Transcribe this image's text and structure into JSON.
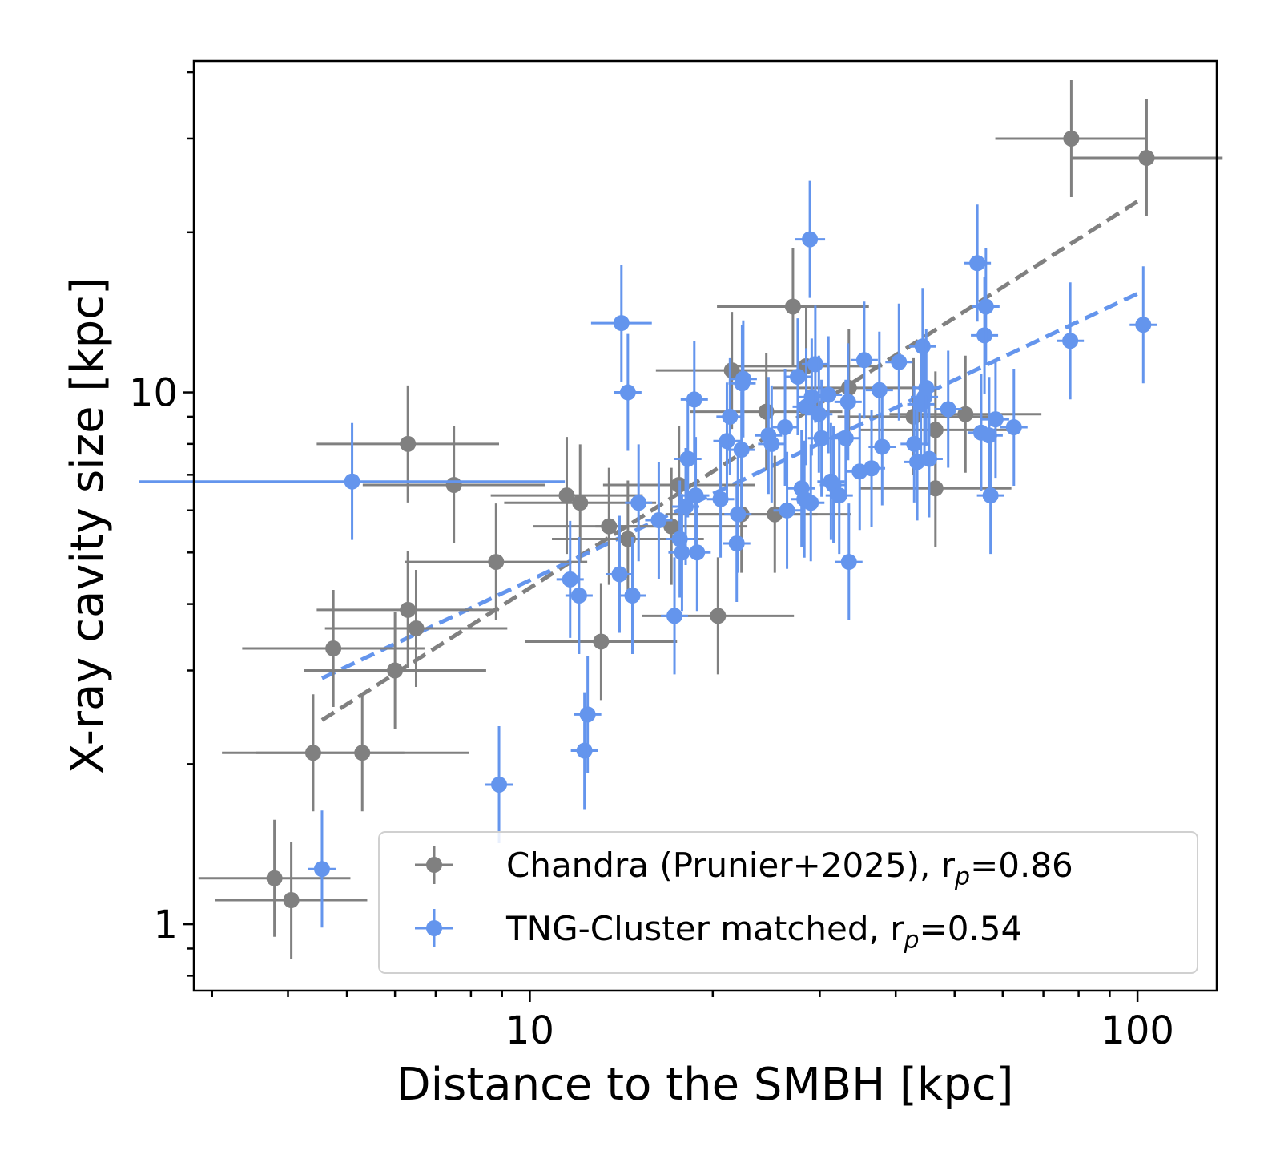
{
  "chart_data": {
    "type": "scatter",
    "xscale": "log",
    "yscale": "log",
    "xlim": [
      2.8,
      135
    ],
    "ylim": [
      0.75,
      42
    ],
    "xlabel": "Distance to the SMBH [kpc]",
    "ylabel": "X-ray cavity size [kpc]",
    "xticks": [
      {
        "value": 10,
        "label": "10"
      },
      {
        "value": 100,
        "label": "100"
      }
    ],
    "yticks": [
      {
        "value": 1,
        "label": "1"
      },
      {
        "value": 10,
        "label": "10"
      }
    ],
    "legend": {
      "position": "lower-right",
      "entries": [
        {
          "series": "chandra",
          "text": "Chandra (Prunier+2025), r",
          "sub": "p",
          "suffix": "=0.86"
        },
        {
          "series": "tng",
          "text": "TNG-Cluster matched, r",
          "sub": "p",
          "suffix": "=0.54"
        }
      ]
    },
    "series": [
      {
        "name": "chandra",
        "color": "#808080",
        "points": [
          [
            3.8,
            1.22,
            0.25,
            0.22
          ],
          [
            4.05,
            1.11,
            0.25,
            0.22
          ],
          [
            4.4,
            2.1,
            0.3,
            0.22
          ],
          [
            4.75,
            3.3,
            0.3,
            0.22
          ],
          [
            5.3,
            2.1,
            0.35,
            0.22
          ],
          [
            6.0,
            3.0,
            0.3,
            0.22
          ],
          [
            6.3,
            8.0,
            0.3,
            0.22
          ],
          [
            6.3,
            3.9,
            0.3,
            0.22
          ],
          [
            6.5,
            3.6,
            0.3,
            0.22
          ],
          [
            7.5,
            6.7,
            0.3,
            0.22
          ],
          [
            8.8,
            4.8,
            0.3,
            0.22
          ],
          [
            11.5,
            6.4,
            0.25,
            0.22
          ],
          [
            12.1,
            6.2,
            0.25,
            0.22
          ],
          [
            13.1,
            3.4,
            0.25,
            0.22
          ],
          [
            13.5,
            5.6,
            0.25,
            0.22
          ],
          [
            14.5,
            5.3,
            0.25,
            0.22
          ],
          [
            17.1,
            5.6,
            0.25,
            0.22
          ],
          [
            17.6,
            6.7,
            0.25,
            0.22
          ],
          [
            20.4,
            3.8,
            0.25,
            0.22
          ],
          [
            21.5,
            11.0,
            0.25,
            0.22
          ],
          [
            22.3,
            5.9,
            0.25,
            0.22
          ],
          [
            24.5,
            9.2,
            0.25,
            0.22
          ],
          [
            25.3,
            5.9,
            0.25,
            0.22
          ],
          [
            27.1,
            14.5,
            0.25,
            0.22
          ],
          [
            28.5,
            11.2,
            0.25,
            0.22
          ],
          [
            33.5,
            10.2,
            0.25,
            0.22
          ],
          [
            42.8,
            9.0,
            0.25,
            0.22
          ],
          [
            46.5,
            8.5,
            0.25,
            0.22
          ],
          [
            46.5,
            6.6,
            0.25,
            0.22
          ],
          [
            52.1,
            9.1,
            0.25,
            0.22
          ],
          [
            77.8,
            30.0,
            0.25,
            0.22
          ],
          [
            103.5,
            27.6,
            0.25,
            0.22
          ]
        ]
      },
      {
        "name": "tng",
        "color": "#6495ed",
        "points": [
          [
            4.55,
            1.27,
            0,
            0.22
          ],
          [
            5.1,
            6.8,
            0.7,
            0.22
          ],
          [
            8.9,
            1.83,
            0,
            0.22
          ],
          [
            11.65,
            4.45,
            0,
            0.22
          ],
          [
            12.05,
            4.15,
            0,
            0.22
          ],
          [
            12.3,
            2.12,
            0,
            0.22
          ],
          [
            12.45,
            2.48,
            0,
            0.22
          ],
          [
            14.05,
            4.55,
            0,
            0.22
          ],
          [
            14.15,
            13.5,
            0.1,
            0.22
          ],
          [
            14.5,
            10.0,
            0,
            0.22
          ],
          [
            14.75,
            4.15,
            0,
            0.22
          ],
          [
            15.1,
            6.2,
            0,
            0.22
          ],
          [
            16.3,
            5.75,
            0,
            0.22
          ],
          [
            17.3,
            3.8,
            0,
            0.22
          ],
          [
            17.65,
            5.3,
            0,
            0.22
          ],
          [
            17.8,
            5.0,
            0,
            0.22
          ],
          [
            18.05,
            6.1,
            0,
            0.22
          ],
          [
            18.2,
            7.5,
            0,
            0.22
          ],
          [
            18.65,
            9.7,
            0,
            0.22
          ],
          [
            18.75,
            6.4,
            0,
            0.22
          ],
          [
            18.85,
            5.0,
            0,
            0.22
          ],
          [
            20.6,
            6.3,
            0,
            0.22
          ],
          [
            21.1,
            8.1,
            0,
            0.22
          ],
          [
            21.35,
            9.0,
            0,
            0.22
          ],
          [
            21.9,
            5.2,
            0,
            0.22
          ],
          [
            22.0,
            5.9,
            0,
            0.22
          ],
          [
            22.3,
            7.8,
            0,
            0.22
          ],
          [
            22.35,
            10.4,
            0,
            0.22
          ],
          [
            22.45,
            10.6,
            0,
            0.22
          ],
          [
            24.7,
            8.3,
            0,
            0.22
          ],
          [
            25.0,
            8.0,
            0,
            0.22
          ],
          [
            26.3,
            8.6,
            0,
            0.22
          ],
          [
            26.5,
            6.0,
            0,
            0.22
          ],
          [
            27.6,
            10.7,
            0,
            0.22
          ],
          [
            28.0,
            6.6,
            0,
            0.22
          ],
          [
            28.3,
            6.3,
            0,
            0.22
          ],
          [
            28.5,
            9.4,
            0,
            0.22
          ],
          [
            28.9,
            19.4,
            0.05,
            0.22
          ],
          [
            29.0,
            6.2,
            0,
            0.22
          ],
          [
            29.1,
            9.8,
            0,
            0.22
          ],
          [
            29.5,
            11.3,
            0,
            0.22
          ],
          [
            29.9,
            9.1,
            0,
            0.22
          ],
          [
            30.2,
            8.2,
            0,
            0.22
          ],
          [
            31.0,
            9.9,
            0,
            0.22
          ],
          [
            31.3,
            6.8,
            0,
            0.22
          ],
          [
            31.6,
            6.7,
            0,
            0.22
          ],
          [
            32.3,
            6.4,
            0,
            0.22
          ],
          [
            33.1,
            8.2,
            0,
            0.22
          ],
          [
            33.4,
            9.6,
            0,
            0.22
          ],
          [
            33.5,
            4.8,
            0,
            0.22
          ],
          [
            34.9,
            7.1,
            0,
            0.22
          ],
          [
            35.5,
            11.5,
            0,
            0.22
          ],
          [
            36.5,
            7.2,
            0,
            0.22
          ],
          [
            37.6,
            10.1,
            0,
            0.22
          ],
          [
            38.0,
            7.9,
            0,
            0.22
          ],
          [
            40.5,
            11.4,
            0,
            0.22
          ],
          [
            42.9,
            8.0,
            0,
            0.22
          ],
          [
            43.4,
            7.4,
            0,
            0.22
          ],
          [
            44.0,
            9.5,
            0,
            0.22
          ],
          [
            44.3,
            12.2,
            0,
            0.22
          ],
          [
            44.6,
            9.8,
            0,
            0.22
          ],
          [
            44.9,
            10.2,
            0,
            0.22
          ],
          [
            45.4,
            7.5,
            0,
            0.22
          ],
          [
            48.8,
            9.3,
            0,
            0.22
          ],
          [
            54.5,
            17.5,
            0,
            0.22
          ],
          [
            55.3,
            8.4,
            0,
            0.22
          ],
          [
            56.0,
            12.8,
            0,
            0.22
          ],
          [
            56.3,
            14.5,
            0,
            0.22
          ],
          [
            57.0,
            8.3,
            0,
            0.22
          ],
          [
            57.3,
            6.4,
            0,
            0.22
          ],
          [
            58.4,
            8.9,
            0,
            0.22
          ],
          [
            62.6,
            8.6,
            0,
            0.22
          ],
          [
            77.5,
            12.5,
            0,
            0.22
          ],
          [
            102.2,
            13.4,
            0,
            0.22
          ]
        ]
      }
    ],
    "fits": [
      {
        "series": "chandra",
        "color": "#808080",
        "x": [
          4.55,
          102
        ],
        "y": [
          2.42,
          23.2
        ]
      },
      {
        "series": "tng",
        "color": "#6495ed",
        "x": [
          4.55,
          102
        ],
        "y": [
          2.9,
          15.5
        ]
      }
    ]
  }
}
